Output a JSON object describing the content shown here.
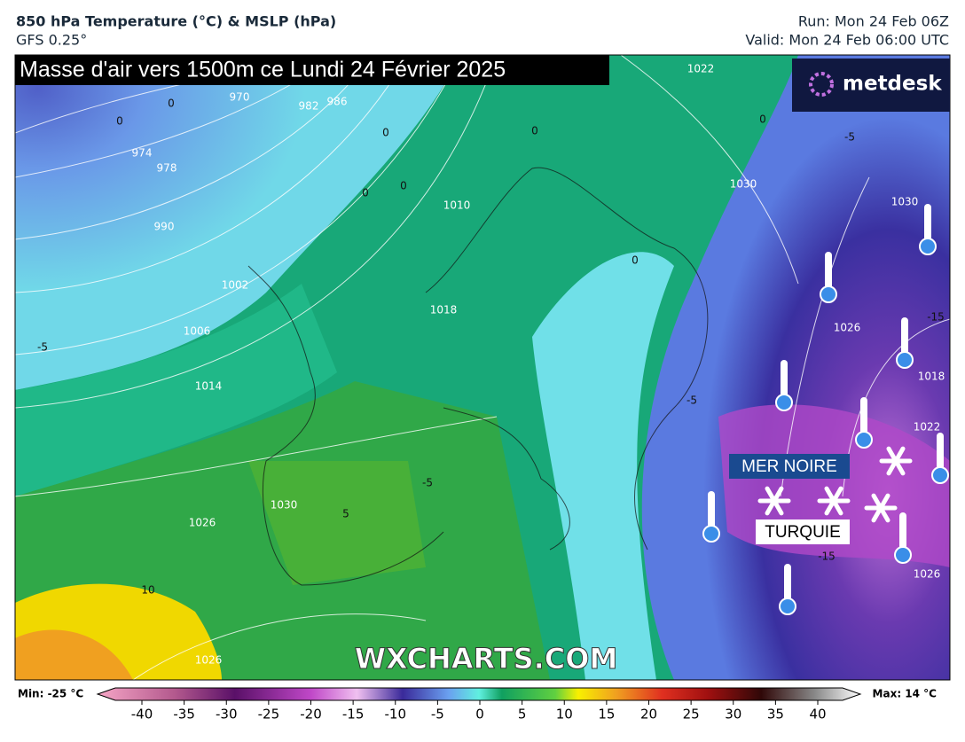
{
  "header": {
    "title": "850 hPa Temperature (°C) & MSLP (hPa)",
    "model": "GFS 0.25°",
    "run": "Run: Mon 24 Feb 06Z",
    "valid": "Valid: Mon 24 Feb 06:00 UTC"
  },
  "map": {
    "banner": "Masse d'air vers 1500m ce Lundi 24 Février 2025",
    "logo": "metdesk",
    "watermark": "WXCHARTS.COM",
    "places": [
      "MER NOIRE",
      "TURQUIE"
    ],
    "isobar_labels": [
      "970",
      "974",
      "978",
      "982",
      "986",
      "990",
      "1002",
      "1006",
      "1014",
      "1010",
      "1018",
      "1030",
      "1026",
      "1026",
      "1022",
      "1030",
      "1030",
      "1026",
      "1018",
      "1022",
      "1026"
    ],
    "temperature_labels": [
      "0",
      "0",
      "0",
      "0",
      "0",
      "0",
      "0",
      "0",
      "-5",
      "-5",
      "-5",
      "-5",
      "-15",
      "-15",
      "10",
      "5"
    ]
  },
  "colorbar": {
    "min_label": "Min: -25 °C",
    "max_label": "Max: 14 °C",
    "ticks": [
      -40,
      -35,
      -30,
      -25,
      -20,
      -15,
      -10,
      -5,
      0,
      5,
      10,
      15,
      20,
      25,
      30,
      35,
      40
    ]
  }
}
